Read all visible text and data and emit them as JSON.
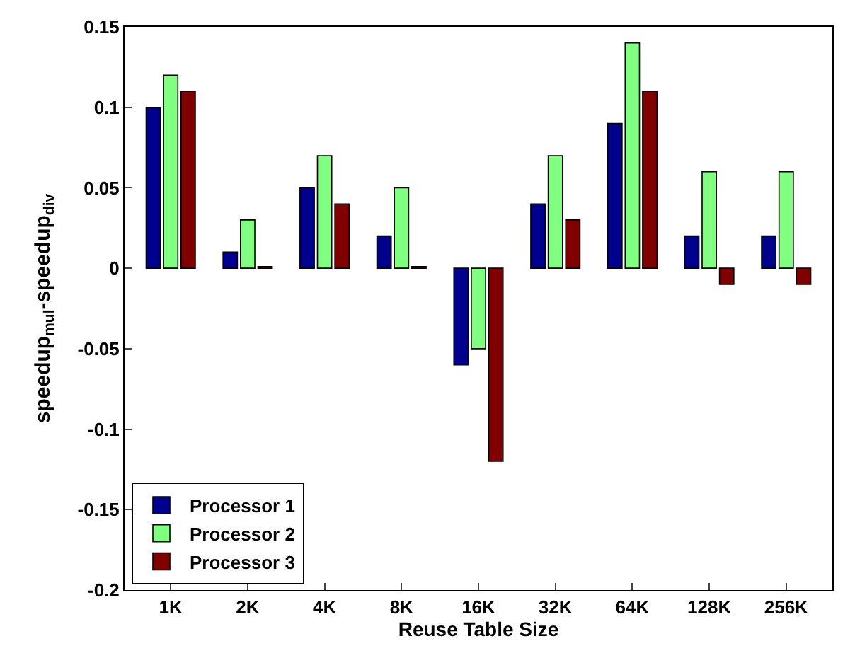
{
  "chart_data": {
    "type": "bar",
    "xlabel": "Reuse Table Size",
    "ylabel": "speedup$_{mul}$-speedup$_{div}$",
    "categories": [
      "1K",
      "2K",
      "4K",
      "8K",
      "16K",
      "32K",
      "64K",
      "128K",
      "256K"
    ],
    "series": [
      {
        "name": "Processor 1",
        "color": "#00008f",
        "values": [
          0.1,
          0.01,
          0.05,
          0.02,
          -0.06,
          0.04,
          0.09,
          0.02,
          0.02
        ]
      },
      {
        "name": "Processor 2",
        "color": "#80ff80",
        "values": [
          0.12,
          0.03,
          0.07,
          0.05,
          -0.05,
          0.07,
          0.14,
          0.06,
          0.06
        ]
      },
      {
        "name": "Processor 3",
        "color": "#800000",
        "values": [
          0.11,
          0.001,
          0.04,
          0.001,
          -0.12,
          0.03,
          0.11,
          -0.01,
          -0.01
        ]
      }
    ],
    "ylim": [
      -0.2,
      0.15
    ],
    "yticks": [
      -0.2,
      -0.15,
      -0.1,
      -0.05,
      0,
      0.05,
      0.1,
      0.15
    ],
    "legend": "bottom left",
    "grid": false
  }
}
